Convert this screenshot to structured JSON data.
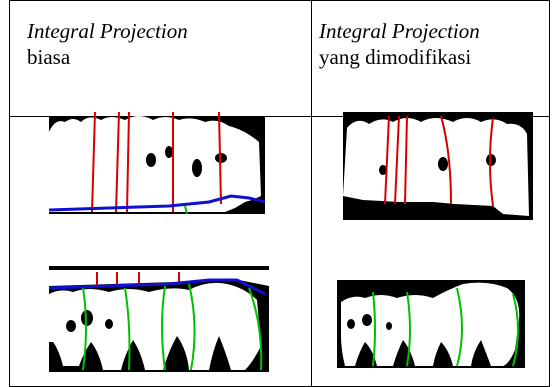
{
  "table": {
    "headers": [
      {
        "line1": "Integral Projection",
        "line2": "biasa"
      },
      {
        "line1": "Integral Projection",
        "line2": "yang dimodifikasi"
      }
    ]
  },
  "images": [
    {
      "name": "dental-xray-upper-biasa",
      "projection_colors": [
        "#d40000",
        "#1010d0",
        "#00c000"
      ]
    },
    {
      "name": "dental-xray-upper-modified",
      "projection_colors": [
        "#d40000"
      ]
    },
    {
      "name": "dental-xray-lower-biasa",
      "projection_colors": [
        "#d40000",
        "#1010d0",
        "#00c000"
      ]
    },
    {
      "name": "dental-xray-lower-modified",
      "projection_colors": [
        "#00c000"
      ]
    }
  ]
}
